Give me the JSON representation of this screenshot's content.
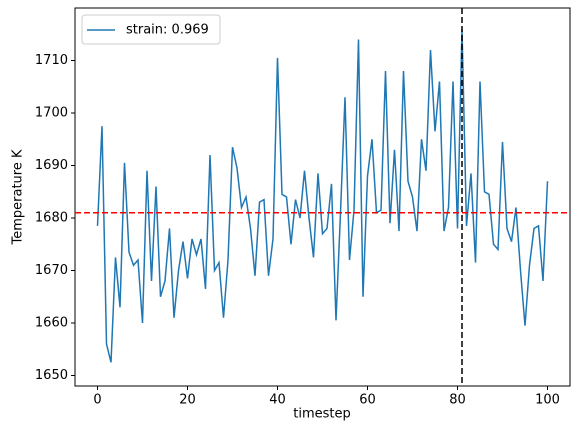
{
  "chart_data": {
    "type": "line",
    "xlabel": "timestep",
    "ylabel": "Temperature K",
    "x": [
      0,
      1,
      2,
      3,
      4,
      5,
      6,
      7,
      8,
      9,
      10,
      11,
      12,
      13,
      14,
      15,
      16,
      17,
      18,
      19,
      20,
      21,
      22,
      23,
      24,
      25,
      26,
      27,
      28,
      29,
      30,
      31,
      32,
      33,
      34,
      35,
      36,
      37,
      38,
      39,
      40,
      41,
      42,
      43,
      44,
      45,
      46,
      47,
      48,
      49,
      50,
      51,
      52,
      53,
      54,
      55,
      56,
      57,
      58,
      59,
      60,
      61,
      62,
      63,
      64,
      65,
      66,
      67,
      68,
      69,
      70,
      71,
      72,
      73,
      74,
      75,
      76,
      77,
      78,
      79,
      80,
      81,
      82,
      83,
      84,
      85,
      86,
      87,
      88,
      89,
      90,
      91,
      92,
      93,
      94,
      95,
      96,
      97,
      98,
      99,
      100
    ],
    "series": [
      {
        "name": "strain: 0.969",
        "color": "#1f77b4",
        "values": [
          1678.5,
          1697.5,
          1656,
          1652.5,
          1672.5,
          1663,
          1690.5,
          1673.5,
          1671,
          1672,
          1660,
          1689,
          1668,
          1686,
          1665,
          1668,
          1678,
          1661,
          1670,
          1675.5,
          1668.5,
          1676,
          1673,
          1676,
          1666.5,
          1692,
          1670,
          1671.5,
          1661,
          1672,
          1693.5,
          1689.5,
          1682,
          1684,
          1678,
          1669,
          1683,
          1683.5,
          1669,
          1676,
          1710.5,
          1684.5,
          1684,
          1675,
          1683.5,
          1680,
          1689,
          1680,
          1672.5,
          1688.5,
          1677,
          1678,
          1686.5,
          1660.5,
          1681,
          1703,
          1672,
          1681.5,
          1714,
          1665,
          1688,
          1695,
          1681,
          1681.5,
          1708,
          1679,
          1693,
          1677.5,
          1708,
          1687,
          1684,
          1677.5,
          1695,
          1689,
          1712,
          1696.5,
          1706,
          1677.5,
          1682,
          1706,
          1678,
          1716,
          1678.5,
          1688.5,
          1671.5,
          1706,
          1685,
          1684.5,
          1675,
          1674,
          1694.5,
          1678,
          1675.5,
          1682,
          1670,
          1659.5,
          1671,
          1678,
          1678.5,
          1668,
          1687
        ]
      }
    ],
    "hline": {
      "y": 1681,
      "color": "#ff0000"
    },
    "vline": {
      "x": 81,
      "color": "#000000"
    },
    "xlim": [
      -5,
      105
    ],
    "ylim": [
      1648,
      1720
    ],
    "xticks": [
      0,
      20,
      40,
      60,
      80,
      100
    ],
    "yticks": [
      1650,
      1660,
      1670,
      1680,
      1690,
      1700,
      1710
    ],
    "legend": "upper left"
  }
}
